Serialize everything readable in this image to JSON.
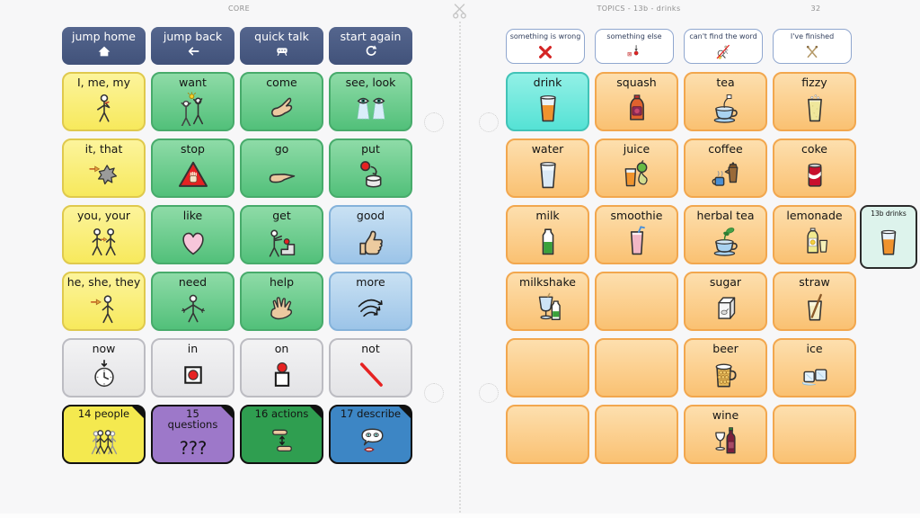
{
  "header": {
    "left_title": "CORE",
    "right_title": "TOPICS - 13b - drinks",
    "right_count": "32"
  },
  "palette": {
    "nav_blue": "#46577d",
    "core_yellow": "#f7e95c",
    "core_green": "#52c07a",
    "core_blue": "#9cc4e8",
    "core_grey": "#e3e3e6",
    "topic_orange": "#fac172",
    "selected_cyan": "#55e2d5",
    "folder_yellow": "#f4e94f",
    "folder_purple": "#9d78c9",
    "folder_green": "#2f9e50",
    "folder_blue": "#3d86c5",
    "white_button_border": "#90a7cf"
  },
  "left_panel": {
    "nav": [
      {
        "label": "jump home",
        "icon": "home"
      },
      {
        "label": "jump back",
        "icon": "arrow-left"
      },
      {
        "label": "quick talk",
        "icon": "chat-device"
      },
      {
        "label": "start again",
        "icon": "undo"
      }
    ],
    "rows": [
      [
        {
          "label": "I, me, my",
          "color": "yellow",
          "icon": "person-self"
        },
        {
          "label": "want",
          "color": "green",
          "icon": "want-figures"
        },
        {
          "label": "come",
          "color": "green",
          "icon": "beckon-hand"
        },
        {
          "label": "see, look",
          "color": "green",
          "icon": "eyes"
        }
      ],
      [
        {
          "label": "it, that",
          "color": "yellow",
          "icon": "point-star"
        },
        {
          "label": "stop",
          "color": "green",
          "icon": "stop-triangle"
        },
        {
          "label": "go",
          "color": "green",
          "icon": "point-hand"
        },
        {
          "label": "put",
          "color": "green",
          "icon": "put-ball"
        }
      ],
      [
        {
          "label": "you, your",
          "color": "yellow",
          "icon": "two-people"
        },
        {
          "label": "like",
          "color": "green",
          "icon": "heart"
        },
        {
          "label": "get",
          "color": "green",
          "icon": "get-figure"
        },
        {
          "label": "good",
          "color": "blue",
          "icon": "thumbs-up"
        }
      ],
      [
        {
          "label": "he, she, they",
          "color": "yellow",
          "icon": "point-person"
        },
        {
          "label": "need",
          "color": "green",
          "icon": "need-figure"
        },
        {
          "label": "help",
          "color": "green",
          "icon": "open-hand"
        },
        {
          "label": "more",
          "color": "blue",
          "icon": "more-arrows"
        }
      ],
      [
        {
          "label": "now",
          "color": "grey",
          "icon": "clock-now"
        },
        {
          "label": "in",
          "color": "grey",
          "icon": "dot-in-box"
        },
        {
          "label": "on",
          "color": "grey",
          "icon": "dot-on-box"
        },
        {
          "label": "not",
          "color": "grey",
          "icon": "red-slash"
        }
      ],
      [
        {
          "label": "14 people",
          "color": "f-yellow",
          "icon": "people-group",
          "folder": true
        },
        {
          "label": "15\nquestions",
          "color": "f-purple",
          "icon": "question-marks",
          "folder": true
        },
        {
          "label": "16 actions",
          "color": "f-green",
          "icon": "sign-hands",
          "folder": true
        },
        {
          "label": "17 describe",
          "color": "f-blue",
          "icon": "describe-face",
          "folder": true
        }
      ]
    ]
  },
  "right_panel": {
    "top_buttons": [
      {
        "label": "something is wrong",
        "icon": "red-x"
      },
      {
        "label": "something else",
        "icon": "else-misc"
      },
      {
        "label": "can't find the word",
        "icon": "crossed-search"
      },
      {
        "label": "I've finished",
        "icon": "crossed-cutlery"
      }
    ],
    "rows": [
      [
        {
          "label": "drink",
          "color": "cyan",
          "icon": "glass-orange"
        },
        {
          "label": "squash",
          "color": "orange",
          "icon": "squash-bottle"
        },
        {
          "label": "tea",
          "color": "orange",
          "icon": "teacup"
        },
        {
          "label": "fizzy",
          "color": "orange",
          "icon": "fizzy-glass"
        }
      ],
      [
        {
          "label": "water",
          "color": "orange",
          "icon": "water-glass"
        },
        {
          "label": "juice",
          "color": "orange",
          "icon": "juice-fruits"
        },
        {
          "label": "coffee",
          "color": "orange",
          "icon": "coffee-pot"
        },
        {
          "label": "coke",
          "color": "orange",
          "icon": "coke-can"
        }
      ],
      [
        {
          "label": "milk",
          "color": "orange",
          "icon": "milk-bottle"
        },
        {
          "label": "smoothie",
          "color": "orange",
          "icon": "smoothie-glass"
        },
        {
          "label": "herbal tea",
          "color": "orange",
          "icon": "herbal-teacup"
        },
        {
          "label": "lemonade",
          "color": "orange",
          "icon": "lemonade-bottle"
        }
      ],
      [
        {
          "label": "milkshake",
          "color": "orange",
          "icon": "milkshake-glass"
        },
        {
          "label": "",
          "color": "orange"
        },
        {
          "label": "sugar",
          "color": "orange",
          "icon": "sugar-box"
        },
        {
          "label": "straw",
          "color": "orange",
          "icon": "straw-glass"
        }
      ],
      [
        {
          "label": "",
          "color": "orange"
        },
        {
          "label": "",
          "color": "orange"
        },
        {
          "label": "beer",
          "color": "orange",
          "icon": "beer-mug"
        },
        {
          "label": "ice",
          "color": "orange",
          "icon": "ice-cubes"
        }
      ],
      [
        {
          "label": "",
          "color": "orange"
        },
        {
          "label": "",
          "color": "orange"
        },
        {
          "label": "wine",
          "color": "orange",
          "icon": "wine-bottle"
        },
        {
          "label": "",
          "color": "orange"
        }
      ]
    ]
  },
  "floating_card": {
    "label": "13b drinks",
    "icon": "glass-orange"
  }
}
